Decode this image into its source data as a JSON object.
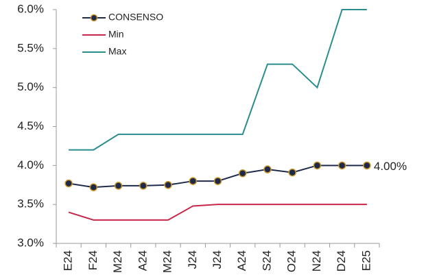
{
  "chart_data": {
    "type": "line",
    "categories": [
      "E24",
      "F24",
      "M24",
      "A24",
      "M24",
      "J24",
      "J24",
      "A24",
      "S24",
      "O24",
      "N24",
      "D24",
      "E25"
    ],
    "series": [
      {
        "name": "CONSENSO",
        "color": "#1f2a4a",
        "marker_edge": "#c9952a",
        "values": [
          3.77,
          3.72,
          3.74,
          3.74,
          3.75,
          3.8,
          3.8,
          3.9,
          3.95,
          3.91,
          4.0,
          4.0,
          4.0
        ],
        "value_labels": [
          null,
          null,
          null,
          null,
          null,
          null,
          null,
          null,
          null,
          null,
          null,
          null,
          "4.00%"
        ]
      },
      {
        "name": "Min",
        "color": "#c8254a",
        "values": [
          3.4,
          3.3,
          3.3,
          3.3,
          3.3,
          3.48,
          3.5,
          3.5,
          3.5,
          3.5,
          3.5,
          3.5,
          3.5
        ]
      },
      {
        "name": "Max",
        "color": "#2a8c8c",
        "values": [
          4.2,
          4.2,
          4.4,
          4.4,
          4.4,
          4.4,
          4.4,
          4.4,
          5.3,
          5.3,
          5.0,
          6.0,
          6.0
        ]
      }
    ],
    "ylim": [
      3.0,
      6.0
    ],
    "yticks": [
      {
        "value": 3.0,
        "label": "3.0%"
      },
      {
        "value": 3.5,
        "label": "3.5%"
      },
      {
        "value": 4.0,
        "label": "4.0%"
      },
      {
        "value": 4.5,
        "label": "4.5%"
      },
      {
        "value": 5.0,
        "label": "5.0%"
      },
      {
        "value": 5.5,
        "label": "5.5%"
      },
      {
        "value": 6.0,
        "label": "6.0%"
      }
    ],
    "grid": false,
    "legend": "upper left"
  }
}
